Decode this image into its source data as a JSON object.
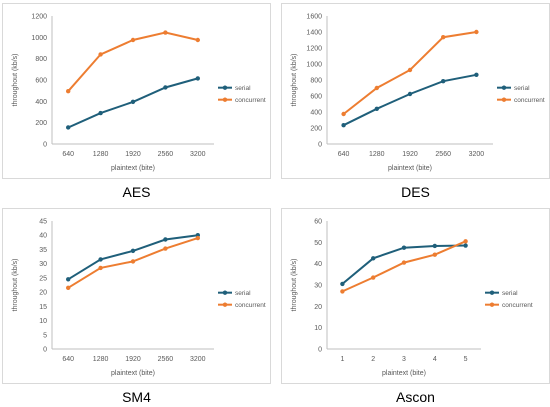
{
  "colors": {
    "serial": "#1f5f7a",
    "concurrent": "#ed7d31"
  },
  "chart_data": [
    {
      "type": "line",
      "caption": "AES",
      "xlabel": "plaintext (bite)",
      "ylabel": "throughout (kb/s)",
      "categories": [
        "640",
        "1280",
        "1920",
        "2560",
        "3200"
      ],
      "ylim": [
        0,
        1200
      ],
      "yticks": [
        "0",
        "200",
        "400",
        "600",
        "800",
        "1000",
        "1200"
      ],
      "series": [
        {
          "name": "serial",
          "values": [
            155,
            290,
            395,
            530,
            615
          ]
        },
        {
          "name": "concurrent",
          "values": [
            495,
            840,
            975,
            1045,
            975
          ]
        }
      ],
      "legend": "right"
    },
    {
      "type": "line",
      "caption": "DES",
      "xlabel": "plaintext (bite)",
      "ylabel": "throughout (kb/s)",
      "categories": [
        "640",
        "1280",
        "1920",
        "2560",
        "3200"
      ],
      "ylim": [
        0,
        1600
      ],
      "yticks": [
        "0",
        "200",
        "400",
        "600",
        "800",
        "1000",
        "1200",
        "1400",
        "1600"
      ],
      "series": [
        {
          "name": "serial",
          "values": [
            235,
            440,
            625,
            785,
            865
          ]
        },
        {
          "name": "concurrent",
          "values": [
            375,
            700,
            925,
            1335,
            1400
          ]
        }
      ],
      "legend": "right"
    },
    {
      "type": "line",
      "caption": "SM4",
      "xlabel": "plaintext (bite)",
      "ylabel": "throughout (kb/s)",
      "categories": [
        "640",
        "1280",
        "1920",
        "2560",
        "3200"
      ],
      "ylim": [
        0,
        45
      ],
      "yticks": [
        "0",
        "5",
        "10",
        "15",
        "20",
        "25",
        "30",
        "35",
        "40",
        "45"
      ],
      "series": [
        {
          "name": "serial",
          "values": [
            24.5,
            31.5,
            34.5,
            38.5,
            40
          ]
        },
        {
          "name": "concurrent",
          "values": [
            21.5,
            28.5,
            30.8,
            35.3,
            39
          ]
        }
      ],
      "legend": "right"
    },
    {
      "type": "line",
      "caption": "Ascon",
      "xlabel": "plaintext (bite)",
      "ylabel": "throughout (kb/s)",
      "categories": [
        "1",
        "2",
        "3",
        "4",
        "5"
      ],
      "ylim": [
        0,
        60
      ],
      "yticks": [
        "0",
        "10",
        "20",
        "30",
        "40",
        "50",
        "60"
      ],
      "series": [
        {
          "name": "serial",
          "values": [
            30.5,
            42.5,
            47.5,
            48.3,
            48.5
          ]
        },
        {
          "name": "concurrent",
          "values": [
            27,
            33.5,
            40.5,
            44.2,
            50.5
          ]
        }
      ],
      "legend": "right"
    }
  ]
}
